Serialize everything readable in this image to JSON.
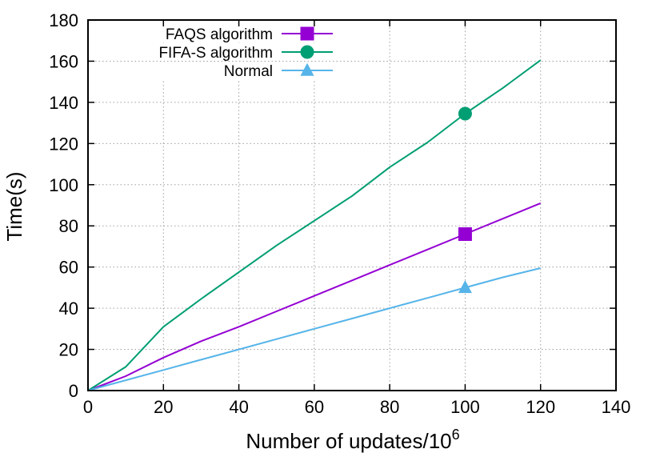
{
  "chart_data": {
    "type": "line",
    "xlabel": "Number of updates/10",
    "xlabel_sup": "6",
    "ylabel": "Time(s)",
    "xlim": [
      0,
      140
    ],
    "ylim": [
      0,
      180
    ],
    "xticks": [
      0,
      20,
      40,
      60,
      80,
      100,
      120,
      140
    ],
    "yticks": [
      0,
      20,
      40,
      60,
      80,
      100,
      120,
      140,
      160,
      180
    ],
    "grid": true,
    "legend_position": "top-left",
    "series": [
      {
        "name": "FAQS algorithm",
        "color": "#9400d3",
        "marker": "square",
        "x": [
          0,
          10,
          20,
          30,
          40,
          50,
          60,
          70,
          80,
          90,
          100,
          110,
          120
        ],
        "y": [
          0,
          7,
          16,
          24,
          31,
          38.5,
          46,
          53.5,
          61,
          68.5,
          76,
          83.5,
          91
        ],
        "marker_x": [
          100
        ],
        "marker_y": [
          76
        ]
      },
      {
        "name": "FIFA-S algorithm",
        "color": "#009e73",
        "marker": "circle",
        "x": [
          0,
          10,
          20,
          30,
          40,
          50,
          60,
          70,
          80,
          90,
          100,
          110,
          120
        ],
        "y": [
          0,
          11.5,
          31,
          44.5,
          57.5,
          70.5,
          82.5,
          94.5,
          108.5,
          120.5,
          134.5,
          147,
          160.5
        ],
        "marker_x": [
          100
        ],
        "marker_y": [
          134.5
        ]
      },
      {
        "name": "Normal",
        "color": "#56b4e9",
        "marker": "triangle",
        "x": [
          0,
          10,
          20,
          30,
          40,
          50,
          60,
          70,
          80,
          90,
          100,
          110,
          120
        ],
        "y": [
          0,
          5,
          10,
          15,
          20,
          25,
          30,
          35,
          40,
          45,
          50,
          55,
          59.5
        ],
        "marker_x": [
          100
        ],
        "marker_y": [
          50
        ]
      }
    ]
  }
}
